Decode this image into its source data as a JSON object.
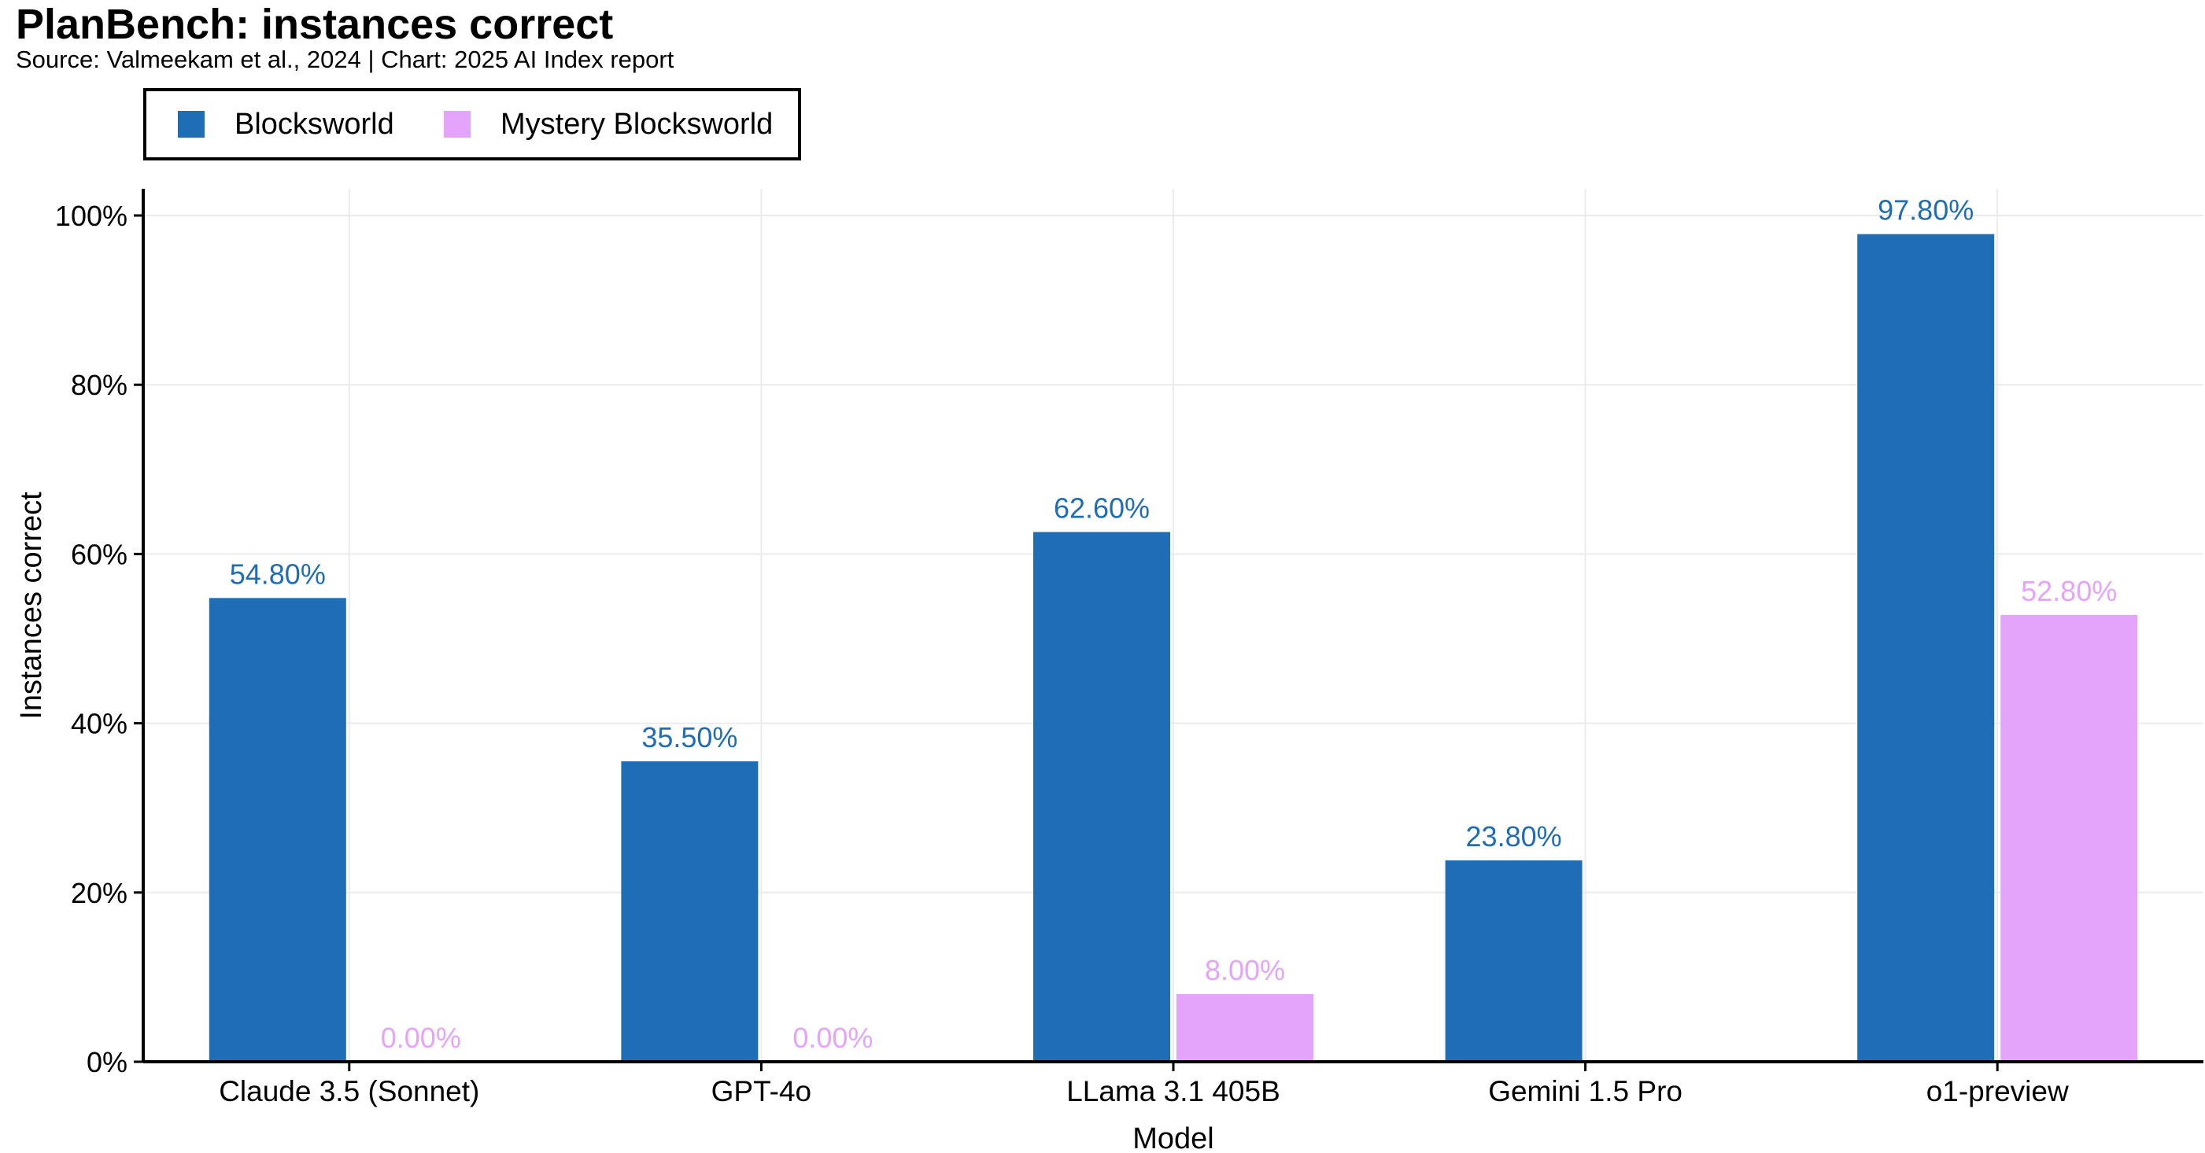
{
  "header": {
    "title": "PlanBench: instances correct",
    "subtitle": "Source: Valmeekam et al., 2024 | Chart: 2025 AI Index report"
  },
  "legend": {
    "items": [
      {
        "label": "Blocksworld",
        "color": "#1f6db5"
      },
      {
        "label": "Mystery Blocksworld",
        "color": "#e4a4fc"
      }
    ]
  },
  "chart_data": {
    "type": "bar",
    "title": "PlanBench: instances correct",
    "xlabel": "Model",
    "ylabel": "Instances correct",
    "ylim": [
      0,
      100
    ],
    "yticks": [
      0,
      20,
      40,
      60,
      80,
      100
    ],
    "ytick_labels": [
      "0%",
      "20%",
      "40%",
      "60%",
      "80%",
      "100%"
    ],
    "grid": true,
    "legend_position": "top-left",
    "categories": [
      "Claude 3.5 (Sonnet)",
      "GPT-4o",
      "LLama 3.1 405B",
      "Gemini 1.5 Pro",
      "o1-preview"
    ],
    "series": [
      {
        "name": "Blocksworld",
        "color": "#1f6db5",
        "values": [
          54.8,
          35.5,
          62.6,
          23.8,
          97.8
        ],
        "labels": [
          "54.80%",
          "35.50%",
          "62.60%",
          "23.80%",
          "97.80%"
        ]
      },
      {
        "name": "Mystery Blocksworld",
        "color": "#e4a4fc",
        "values": [
          0,
          0,
          8,
          null,
          52.8
        ],
        "labels": [
          "0.00%",
          "0.00%",
          "8.00%",
          null,
          "52.80%"
        ]
      }
    ]
  }
}
